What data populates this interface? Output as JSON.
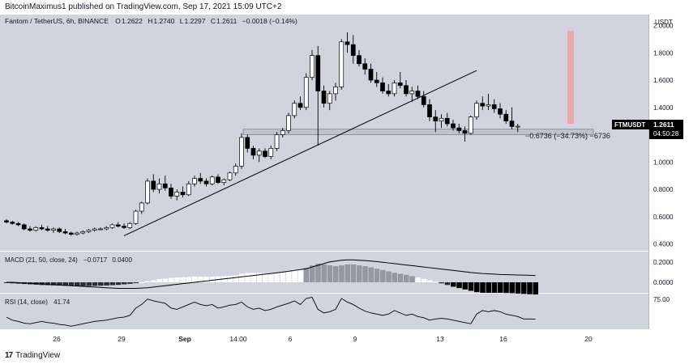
{
  "header": {
    "published_by": "BitcoinMaximus1 published on TradingView.com, Sep 17, 2021 15:09 UTC+2"
  },
  "legend": {
    "symbol": "Fantom / TetherUS, 6h, BINANCE",
    "o_label": "O",
    "o": "1.2622",
    "h_label": "H",
    "h": "1.2740",
    "l_label": "L",
    "l": "1.2297",
    "c_label": "C",
    "c": "1.2611",
    "change": "−0.0018 (−0.14%)"
  },
  "price_axis": {
    "ticks": [
      "2.0000",
      "1.8000",
      "1.6000",
      "1.4000",
      "1.2000",
      "1.0000",
      "0.8000",
      "0.6000",
      "0.4000"
    ],
    "currency": "USDT",
    "ticker_label": "FTMUSDT",
    "last_price": "1.2611",
    "countdown": "04:50:28"
  },
  "measure": {
    "label": "−0.6736 (−34.73%) −6736"
  },
  "macd": {
    "label": "MACD (21, 50, close, 24)",
    "macd_value": "−0.0717",
    "signal_value": "0.0400",
    "ticks": [
      "0.2000",
      "0.0000"
    ]
  },
  "rsi": {
    "label": "RSI (14, close)",
    "value": "41.74",
    "ticks": [
      "75.00"
    ]
  },
  "time_axis": {
    "labels": [
      "26",
      "29",
      "Sep",
      "14:00",
      "6",
      "9",
      "13",
      "16",
      "20"
    ]
  },
  "footer": {
    "brand": "TradingView"
  },
  "colors": {
    "bg": "#d1d4dc",
    "up": "#ffffff",
    "down": "#000000",
    "zone": "#b2b5be",
    "target": "#e8a3a8"
  },
  "chart_data": {
    "type": "candlestick",
    "title": "Fantom / TetherUS, 6h, BINANCE",
    "ylim": [
      0.4,
      2.1
    ],
    "support_zone": [
      1.2,
      1.24
    ],
    "candles": [
      {
        "o": 0.57,
        "h": 0.58,
        "l": 0.55,
        "c": 0.56
      },
      {
        "o": 0.56,
        "h": 0.57,
        "l": 0.54,
        "c": 0.55
      },
      {
        "o": 0.55,
        "h": 0.56,
        "l": 0.53,
        "c": 0.54
      },
      {
        "o": 0.54,
        "h": 0.55,
        "l": 0.5,
        "c": 0.51
      },
      {
        "o": 0.51,
        "h": 0.53,
        "l": 0.49,
        "c": 0.5
      },
      {
        "o": 0.5,
        "h": 0.53,
        "l": 0.49,
        "c": 0.52
      },
      {
        "o": 0.52,
        "h": 0.54,
        "l": 0.5,
        "c": 0.51
      },
      {
        "o": 0.51,
        "h": 0.53,
        "l": 0.49,
        "c": 0.5
      },
      {
        "o": 0.5,
        "h": 0.52,
        "l": 0.48,
        "c": 0.51
      },
      {
        "o": 0.51,
        "h": 0.52,
        "l": 0.48,
        "c": 0.49
      },
      {
        "o": 0.49,
        "h": 0.51,
        "l": 0.47,
        "c": 0.48
      },
      {
        "o": 0.48,
        "h": 0.49,
        "l": 0.46,
        "c": 0.47
      },
      {
        "o": 0.47,
        "h": 0.49,
        "l": 0.46,
        "c": 0.48
      },
      {
        "o": 0.48,
        "h": 0.5,
        "l": 0.47,
        "c": 0.49
      },
      {
        "o": 0.49,
        "h": 0.51,
        "l": 0.48,
        "c": 0.5
      },
      {
        "o": 0.5,
        "h": 0.52,
        "l": 0.49,
        "c": 0.51
      },
      {
        "o": 0.51,
        "h": 0.52,
        "l": 0.5,
        "c": 0.51
      },
      {
        "o": 0.51,
        "h": 0.53,
        "l": 0.5,
        "c": 0.52
      },
      {
        "o": 0.52,
        "h": 0.55,
        "l": 0.51,
        "c": 0.54
      },
      {
        "o": 0.54,
        "h": 0.56,
        "l": 0.52,
        "c": 0.53
      },
      {
        "o": 0.53,
        "h": 0.55,
        "l": 0.51,
        "c": 0.52
      },
      {
        "o": 0.52,
        "h": 0.56,
        "l": 0.51,
        "c": 0.55
      },
      {
        "o": 0.55,
        "h": 0.65,
        "l": 0.54,
        "c": 0.64
      },
      {
        "o": 0.64,
        "h": 0.71,
        "l": 0.62,
        "c": 0.7
      },
      {
        "o": 0.7,
        "h": 0.88,
        "l": 0.69,
        "c": 0.86
      },
      {
        "o": 0.86,
        "h": 0.91,
        "l": 0.78,
        "c": 0.8
      },
      {
        "o": 0.8,
        "h": 0.88,
        "l": 0.77,
        "c": 0.84
      },
      {
        "o": 0.84,
        "h": 0.9,
        "l": 0.79,
        "c": 0.81
      },
      {
        "o": 0.81,
        "h": 0.84,
        "l": 0.73,
        "c": 0.75
      },
      {
        "o": 0.75,
        "h": 0.8,
        "l": 0.72,
        "c": 0.78
      },
      {
        "o": 0.78,
        "h": 0.82,
        "l": 0.74,
        "c": 0.76
      },
      {
        "o": 0.76,
        "h": 0.86,
        "l": 0.75,
        "c": 0.84
      },
      {
        "o": 0.84,
        "h": 0.9,
        "l": 0.82,
        "c": 0.88
      },
      {
        "o": 0.88,
        "h": 0.92,
        "l": 0.84,
        "c": 0.86
      },
      {
        "o": 0.86,
        "h": 0.88,
        "l": 0.82,
        "c": 0.84
      },
      {
        "o": 0.84,
        "h": 0.9,
        "l": 0.83,
        "c": 0.89
      },
      {
        "o": 0.89,
        "h": 0.91,
        "l": 0.84,
        "c": 0.85
      },
      {
        "o": 0.85,
        "h": 0.88,
        "l": 0.83,
        "c": 0.87
      },
      {
        "o": 0.87,
        "h": 0.93,
        "l": 0.86,
        "c": 0.92
      },
      {
        "o": 0.92,
        "h": 0.99,
        "l": 0.9,
        "c": 0.97
      },
      {
        "o": 0.97,
        "h": 1.21,
        "l": 0.95,
        "c": 1.18
      },
      {
        "o": 1.18,
        "h": 1.2,
        "l": 1.07,
        "c": 1.1
      },
      {
        "o": 1.1,
        "h": 1.12,
        "l": 1.02,
        "c": 1.05
      },
      {
        "o": 1.05,
        "h": 1.1,
        "l": 1.0,
        "c": 1.08
      },
      {
        "o": 1.08,
        "h": 1.1,
        "l": 1.03,
        "c": 1.04
      },
      {
        "o": 1.04,
        "h": 1.12,
        "l": 1.02,
        "c": 1.1
      },
      {
        "o": 1.1,
        "h": 1.22,
        "l": 1.08,
        "c": 1.2
      },
      {
        "o": 1.2,
        "h": 1.25,
        "l": 1.18,
        "c": 1.23
      },
      {
        "o": 1.23,
        "h": 1.36,
        "l": 1.21,
        "c": 1.34
      },
      {
        "o": 1.34,
        "h": 1.45,
        "l": 1.32,
        "c": 1.43
      },
      {
        "o": 1.43,
        "h": 1.48,
        "l": 1.38,
        "c": 1.4
      },
      {
        "o": 1.4,
        "h": 1.65,
        "l": 1.38,
        "c": 1.62
      },
      {
        "o": 1.62,
        "h": 1.82,
        "l": 1.6,
        "c": 1.78
      },
      {
        "o": 1.78,
        "h": 1.85,
        "l": 1.12,
        "c": 1.52
      },
      {
        "o": 1.52,
        "h": 1.56,
        "l": 1.4,
        "c": 1.43
      },
      {
        "o": 1.43,
        "h": 1.52,
        "l": 1.38,
        "c": 1.5
      },
      {
        "o": 1.5,
        "h": 1.58,
        "l": 1.45,
        "c": 1.55
      },
      {
        "o": 1.55,
        "h": 1.9,
        "l": 1.53,
        "c": 1.88
      },
      {
        "o": 1.88,
        "h": 1.95,
        "l": 1.8,
        "c": 1.86
      },
      {
        "o": 1.86,
        "h": 1.93,
        "l": 1.72,
        "c": 1.78
      },
      {
        "o": 1.78,
        "h": 1.82,
        "l": 1.7,
        "c": 1.72
      },
      {
        "o": 1.72,
        "h": 1.76,
        "l": 1.64,
        "c": 1.68
      },
      {
        "o": 1.68,
        "h": 1.72,
        "l": 1.58,
        "c": 1.6
      },
      {
        "o": 1.6,
        "h": 1.66,
        "l": 1.55,
        "c": 1.58
      },
      {
        "o": 1.58,
        "h": 1.62,
        "l": 1.5,
        "c": 1.52
      },
      {
        "o": 1.52,
        "h": 1.57,
        "l": 1.48,
        "c": 1.5
      },
      {
        "o": 1.5,
        "h": 1.6,
        "l": 1.48,
        "c": 1.58
      },
      {
        "o": 1.58,
        "h": 1.66,
        "l": 1.54,
        "c": 1.56
      },
      {
        "o": 1.56,
        "h": 1.6,
        "l": 1.48,
        "c": 1.5
      },
      {
        "o": 1.5,
        "h": 1.55,
        "l": 1.44,
        "c": 1.52
      },
      {
        "o": 1.52,
        "h": 1.56,
        "l": 1.46,
        "c": 1.48
      },
      {
        "o": 1.48,
        "h": 1.52,
        "l": 1.4,
        "c": 1.42
      },
      {
        "o": 1.42,
        "h": 1.46,
        "l": 1.3,
        "c": 1.33
      },
      {
        "o": 1.33,
        "h": 1.38,
        "l": 1.22,
        "c": 1.3
      },
      {
        "o": 1.3,
        "h": 1.35,
        "l": 1.25,
        "c": 1.32
      },
      {
        "o": 1.32,
        "h": 1.36,
        "l": 1.26,
        "c": 1.28
      },
      {
        "o": 1.28,
        "h": 1.31,
        "l": 1.23,
        "c": 1.25
      },
      {
        "o": 1.25,
        "h": 1.28,
        "l": 1.21,
        "c": 1.23
      },
      {
        "o": 1.23,
        "h": 1.26,
        "l": 1.15,
        "c": 1.21
      },
      {
        "o": 1.21,
        "h": 1.34,
        "l": 1.2,
        "c": 1.33
      },
      {
        "o": 1.33,
        "h": 1.45,
        "l": 1.31,
        "c": 1.43
      },
      {
        "o": 1.43,
        "h": 1.48,
        "l": 1.38,
        "c": 1.41
      },
      {
        "o": 1.41,
        "h": 1.5,
        "l": 1.38,
        "c": 1.42
      },
      {
        "o": 1.42,
        "h": 1.46,
        "l": 1.36,
        "c": 1.39
      },
      {
        "o": 1.39,
        "h": 1.43,
        "l": 1.32,
        "c": 1.35
      },
      {
        "o": 1.35,
        "h": 1.38,
        "l": 1.28,
        "c": 1.3
      },
      {
        "o": 1.3,
        "h": 1.4,
        "l": 1.24,
        "c": 1.26
      },
      {
        "o": 1.26,
        "h": 1.28,
        "l": 1.22,
        "c": 1.262
      }
    ],
    "macd_hist": [
      -0.004,
      -0.006,
      -0.008,
      -0.01,
      -0.012,
      -0.014,
      -0.016,
      -0.017,
      -0.018,
      -0.019,
      -0.02,
      -0.021,
      -0.022,
      -0.022,
      -0.022,
      -0.021,
      -0.02,
      -0.019,
      -0.017,
      -0.015,
      -0.012,
      -0.009,
      -0.005,
      0.0,
      0.006,
      0.012,
      0.018,
      0.022,
      0.026,
      0.028,
      0.03,
      0.032,
      0.034,
      0.034,
      0.034,
      0.034,
      0.035,
      0.036,
      0.038,
      0.04,
      0.05,
      0.055,
      0.056,
      0.055,
      0.054,
      0.055,
      0.058,
      0.062,
      0.068,
      0.075,
      0.078,
      0.085,
      0.1,
      0.11,
      0.105,
      0.1,
      0.095,
      0.1,
      0.105,
      0.105,
      0.1,
      0.095,
      0.088,
      0.08,
      0.072,
      0.064,
      0.056,
      0.05,
      0.044,
      0.036,
      0.028,
      0.02,
      0.012,
      0.004,
      -0.006,
      -0.016,
      -0.026,
      -0.034,
      -0.042,
      -0.05,
      -0.058,
      -0.062,
      -0.062,
      -0.062,
      -0.062,
      -0.063,
      -0.064,
      -0.066,
      -0.068,
      -0.07,
      -0.0717
    ],
    "macd_line": [
      0.0,
      0.0,
      -0.002,
      -0.004,
      -0.006,
      -0.008,
      -0.01,
      -0.012,
      -0.014,
      -0.016,
      -0.018,
      -0.02,
      -0.022,
      -0.024,
      -0.026,
      -0.028,
      -0.03,
      -0.032,
      -0.034,
      -0.036,
      -0.036,
      -0.036,
      -0.036,
      -0.034,
      -0.032,
      -0.028,
      -0.024,
      -0.02,
      -0.016,
      -0.012,
      -0.008,
      -0.004,
      0.0,
      0.004,
      0.008,
      0.012,
      0.016,
      0.02,
      0.024,
      0.028,
      0.032,
      0.036,
      0.04,
      0.044,
      0.048,
      0.052,
      0.056,
      0.06,
      0.065,
      0.07,
      0.075,
      0.08,
      0.09,
      0.1,
      0.11,
      0.12,
      0.125,
      0.13,
      0.132,
      0.132,
      0.13,
      0.128,
      0.125,
      0.122,
      0.118,
      0.114,
      0.11,
      0.106,
      0.102,
      0.098,
      0.094,
      0.09,
      0.086,
      0.082,
      0.078,
      0.074,
      0.07,
      0.066,
      0.062,
      0.058,
      0.055,
      0.052,
      0.05,
      0.048,
      0.046,
      0.045,
      0.044,
      0.043,
      0.042,
      0.041,
      0.04
    ],
    "rsi": [
      45,
      40,
      38,
      35,
      34,
      36,
      38,
      36,
      35,
      33,
      32,
      30,
      32,
      34,
      36,
      38,
      39,
      40,
      42,
      44,
      45,
      48,
      60,
      66,
      75,
      72,
      70,
      68,
      60,
      58,
      62,
      66,
      70,
      66,
      64,
      66,
      60,
      62,
      65,
      66,
      70,
      62,
      58,
      60,
      56,
      58,
      62,
      65,
      68,
      72,
      66,
      76,
      78,
      58,
      52,
      54,
      58,
      76,
      70,
      66,
      60,
      55,
      52,
      50,
      48,
      50,
      56,
      52,
      48,
      50,
      46,
      44,
      40,
      42,
      43,
      42,
      40,
      38,
      36,
      34,
      50,
      56,
      54,
      56,
      54,
      50,
      48,
      46,
      42,
      42,
      41.74
    ]
  }
}
